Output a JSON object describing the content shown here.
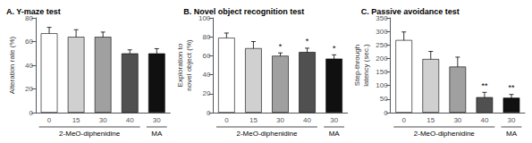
{
  "chart_data": [
    {
      "type": "bar",
      "title": "A. Y-maze test",
      "ylabel": "Alteration rate (%)",
      "categories": [
        "0",
        "15",
        "30",
        "40",
        "30"
      ],
      "values": [
        67,
        64,
        64,
        50,
        50
      ],
      "errors": [
        5,
        6,
        4,
        3,
        4
      ],
      "colors": [
        "#ffffff",
        "#d0d0d0",
        "#a0a0a0",
        "#505050",
        "#101010"
      ],
      "ylim": [
        0,
        80
      ],
      "yticks": [
        0,
        20,
        40,
        60,
        80
      ],
      "significance": [
        null,
        null,
        null,
        null,
        null
      ],
      "groups": [
        {
          "label": "2-MeO-diphenidine",
          "span": 4
        },
        {
          "label": "MA",
          "span": 1
        }
      ],
      "grid": false
    },
    {
      "type": "bar",
      "title": "B. Novel object recognition test",
      "ylabel": "Exploration to\nnovel object (%)",
      "categories": [
        "0",
        "15",
        "30",
        "40",
        "30"
      ],
      "values": [
        79,
        68,
        60,
        64,
        57
      ],
      "errors": [
        5,
        7,
        3,
        4,
        4
      ],
      "colors": [
        "#ffffff",
        "#d0d0d0",
        "#a0a0a0",
        "#505050",
        "#101010"
      ],
      "ylim": [
        0,
        100
      ],
      "yticks": [
        0,
        20,
        40,
        60,
        80,
        100
      ],
      "significance": [
        null,
        null,
        "*",
        "*",
        "*"
      ],
      "groups": [
        {
          "label": "2-MeO-diphenidine",
          "span": 4
        },
        {
          "label": "MA",
          "span": 1
        }
      ],
      "grid": false
    },
    {
      "type": "bar",
      "title": "C. Passive avoidance test",
      "ylabel": "Step-through\nlatency (sec.)",
      "categories": [
        "0",
        "15",
        "30",
        "40",
        "30"
      ],
      "values": [
        268,
        198,
        170,
        57,
        55
      ],
      "errors": [
        30,
        28,
        35,
        18,
        12
      ],
      "colors": [
        "#ffffff",
        "#d0d0d0",
        "#a0a0a0",
        "#505050",
        "#101010"
      ],
      "ylim": [
        0,
        350
      ],
      "yticks": [
        0,
        50,
        100,
        150,
        200,
        250,
        300,
        350
      ],
      "significance": [
        null,
        null,
        null,
        "**",
        "**"
      ],
      "groups": [
        {
          "label": "2-MeO-diphenidine",
          "span": 4
        },
        {
          "label": "MA",
          "span": 1
        }
      ],
      "grid": false
    }
  ]
}
